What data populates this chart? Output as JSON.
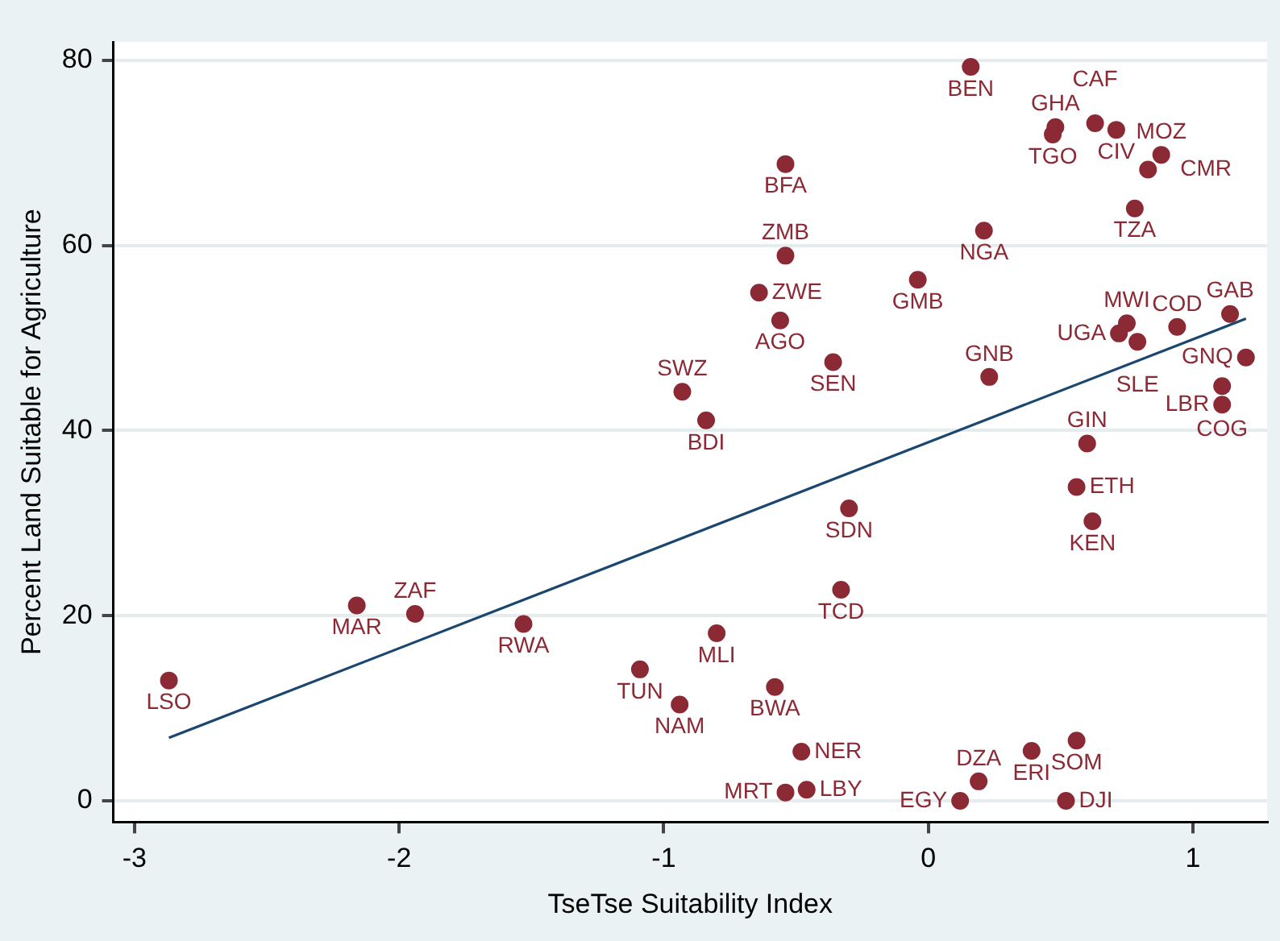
{
  "chart_data": {
    "type": "scatter",
    "xlabel": "TseTse Suitability Index",
    "ylabel": "Percent Land Suitable for Agriculture",
    "xlim": [
      -3.08,
      1.28
    ],
    "xticks": [
      -3,
      -2,
      -1,
      0,
      1
    ],
    "ylim": [
      -2.3,
      82
    ],
    "yticks": [
      0,
      20,
      40,
      60,
      80
    ],
    "grid": "y",
    "marker": "circle",
    "legend": false,
    "series": [
      {
        "color": "#8b2a35",
        "x": [
          -2.87,
          -2.16,
          -1.94,
          -1.53,
          -1.09,
          -0.94,
          -0.8,
          -0.93,
          -0.84,
          -0.58,
          -0.48,
          -0.54,
          -0.46,
          -0.64,
          -0.54,
          -0.56,
          -0.54,
          -0.36,
          -0.04,
          0.21,
          0.16,
          0.23,
          -0.3,
          -0.33,
          0.6,
          0.56,
          0.62,
          0.12,
          0.19,
          0.39,
          0.56,
          0.52,
          0.48,
          0.47,
          0.63,
          0.71,
          0.88,
          0.83,
          0.78,
          0.72,
          0.75,
          0.79,
          0.94,
          1.14,
          1.2,
          1.11,
          1.11
        ],
        "values": [
          13.0,
          21.1,
          20.2,
          19.1,
          14.2,
          10.4,
          18.1,
          44.2,
          41.1,
          12.3,
          5.3,
          0.9,
          1.2,
          54.9,
          58.9,
          51.9,
          68.8,
          47.4,
          56.3,
          61.6,
          79.3,
          45.8,
          31.6,
          22.8,
          38.6,
          33.9,
          30.2,
          0,
          2.1,
          5.4,
          6.5,
          0,
          72.8,
          72.0,
          73.2,
          72.5,
          69.8,
          68.2,
          64.0,
          50.5,
          51.6,
          49.6,
          51.2,
          52.6,
          47.9,
          44.8,
          42.8
        ],
        "value_labels": [
          "LSO",
          "MAR",
          "ZAF",
          "RWA",
          "TUN",
          "NAM",
          "MLI",
          "SWZ",
          "BDI",
          "BWA",
          "NER",
          "MRT",
          "LBY",
          "ZWE",
          "ZMB",
          "AGO",
          "BFA",
          "SEN",
          "GMB",
          "NGA",
          "BEN",
          "GNB",
          "SDN",
          "TCD",
          "GIN",
          "ETH",
          "KEN",
          "EGY",
          "DZA",
          "ERI",
          "SOM",
          "DJI",
          "GHA",
          "TGO",
          "CAF",
          "CIV",
          "MOZ",
          "CMR",
          "TZA",
          "UGA",
          "MWI",
          "SLE",
          "COD",
          "GAB",
          "GNQ",
          "COG",
          "LBR"
        ]
      },
      {
        "type": "line",
        "color": "#1a476f",
        "x": [
          -2.87,
          1.2
        ],
        "values": [
          6.8,
          52.1
        ],
        "marker": "none"
      }
    ]
  }
}
